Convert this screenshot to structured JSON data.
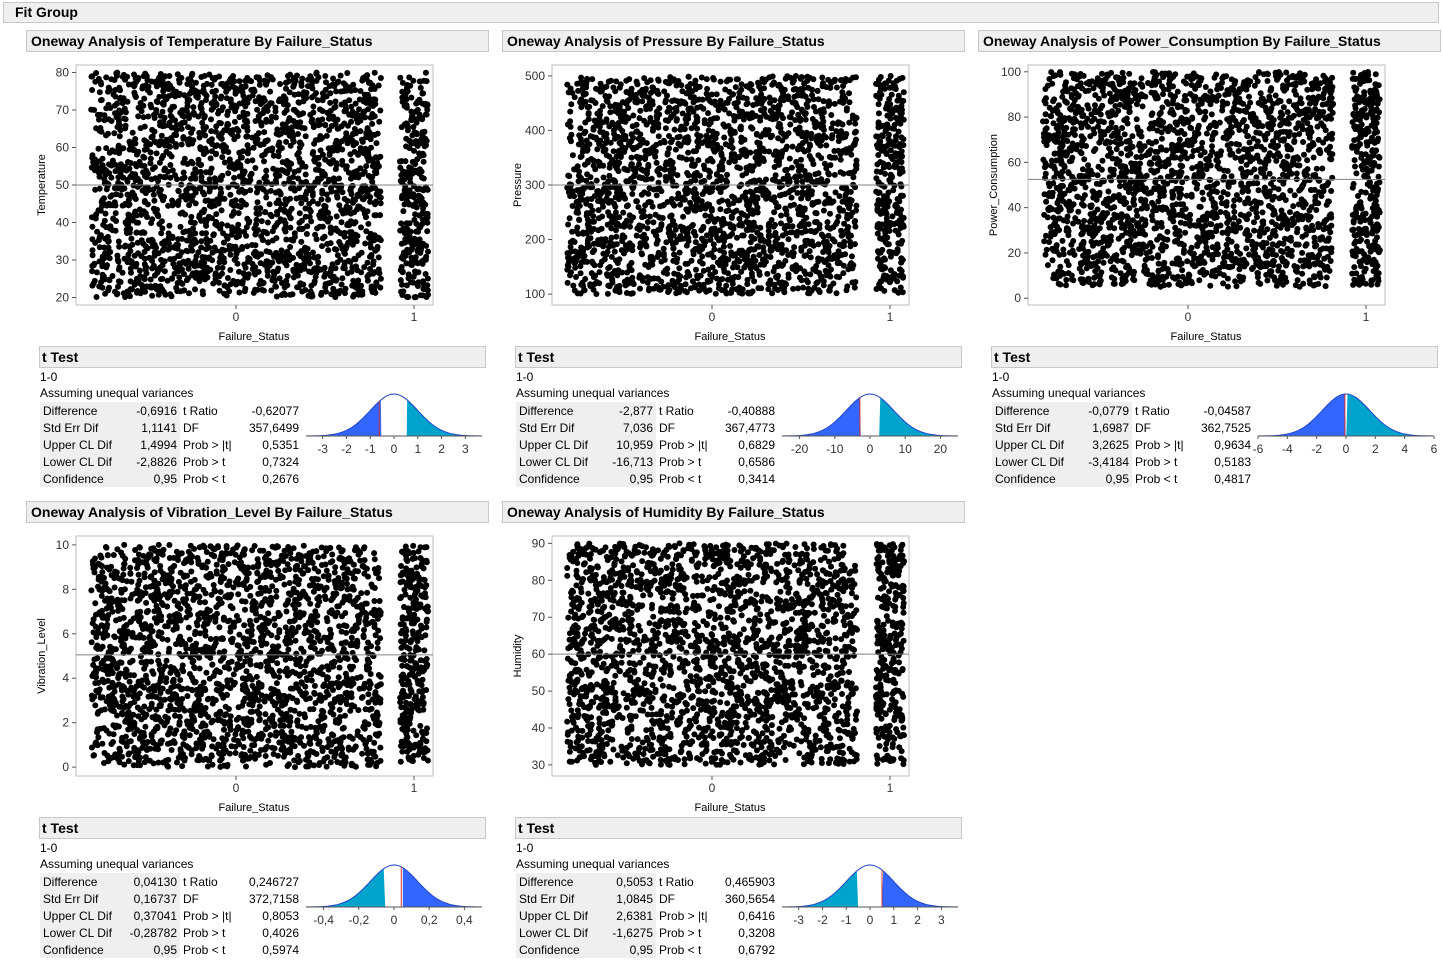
{
  "fit_group_title": "Fit Group",
  "colors": {
    "jitter_point": "#000000",
    "dist_left": "#3366ff",
    "dist_right": "#00a3cc",
    "mean_line": "#808080",
    "estimate_line": "#cc3333"
  },
  "panels": [
    {
      "title": "Oneway Analysis of Temperature By Failure_Status",
      "chart_data": {
        "type": "scatter",
        "ylabel": "Temperature",
        "xlabel": "Failure_Status",
        "ylim": [
          18,
          82
        ],
        "yticks": [
          20,
          30,
          40,
          50,
          60,
          70,
          80
        ],
        "categories": [
          "0",
          "1"
        ],
        "y_range_group0": [
          20,
          80
        ],
        "y_range_group1": [
          20,
          80
        ],
        "grand_mean": 50
      },
      "ttest": {
        "title": "t Test",
        "comparison": "1-0",
        "assumption": "Assuming unequal variances",
        "rows": [
          {
            "label": "Difference",
            "value": "-0,6916",
            "stat": "t Ratio",
            "stat_value": "-0,62077"
          },
          {
            "label": "Std Err Dif",
            "value": "1,1141",
            "stat": "DF",
            "stat_value": "357,6499"
          },
          {
            "label": "Upper CL Dif",
            "value": "1,4994",
            "stat": "Prob > |t|",
            "stat_value": "0,5351"
          },
          {
            "label": "Lower CL Dif",
            "value": "-2,8826",
            "stat": "Prob > t",
            "stat_value": "0,7324"
          },
          {
            "label": "Confidence",
            "value": "0,95",
            "stat": "Prob < t",
            "stat_value": "0,2676"
          }
        ],
        "dist": {
          "xticks": [
            "-3",
            "-2",
            "-1",
            "0",
            "1",
            "2",
            "3"
          ],
          "xmin": -3.7,
          "xmax": 3.7,
          "tratio": -0.62077,
          "ci_lower": -0.5351,
          "ci_upper": 0.5351
        }
      }
    },
    {
      "title": "Oneway Analysis of Pressure By Failure_Status",
      "chart_data": {
        "type": "scatter",
        "ylabel": "Pressure",
        "xlabel": "Failure_Status",
        "ylim": [
          80,
          520
        ],
        "yticks": [
          100,
          200,
          300,
          400,
          500
        ],
        "categories": [
          "0",
          "1"
        ],
        "y_range_group0": [
          100,
          500
        ],
        "y_range_group1": [
          100,
          500
        ],
        "grand_mean": 300
      },
      "ttest": {
        "title": "t Test",
        "comparison": "1-0",
        "assumption": "Assuming unequal variances",
        "rows": [
          {
            "label": "Difference",
            "value": "-2,877",
            "stat": "t Ratio",
            "stat_value": "-0,40888"
          },
          {
            "label": "Std Err Dif",
            "value": "7,036",
            "stat": "DF",
            "stat_value": "367,4773"
          },
          {
            "label": "Upper CL Dif",
            "value": "10,959",
            "stat": "Prob > |t|",
            "stat_value": "0,6829"
          },
          {
            "label": "Lower CL Dif",
            "value": "-16,713",
            "stat": "Prob > t",
            "stat_value": "0,6586"
          },
          {
            "label": "Confidence",
            "value": "0,95",
            "stat": "Prob < t",
            "stat_value": "0,3414"
          }
        ],
        "dist": {
          "xticks": [
            "-20",
            "-10",
            "0",
            "10",
            "20"
          ],
          "xmin": -25,
          "xmax": 25,
          "tratio": -2.877,
          "ci_lower": -2.6,
          "ci_upper": 2.6
        }
      }
    },
    {
      "title": "Oneway Analysis of Power_Consumption By Failure_Status",
      "chart_data": {
        "type": "scatter",
        "ylabel": "Power_Consumption",
        "xlabel": "Failure_Status",
        "ylim": [
          -3,
          103
        ],
        "yticks": [
          0,
          20,
          40,
          60,
          80,
          100
        ],
        "categories": [
          "0",
          "1"
        ],
        "y_range_group0": [
          5,
          100
        ],
        "y_range_group1": [
          5,
          100
        ],
        "grand_mean": 52.5
      },
      "ttest": {
        "title": "t Test",
        "comparison": "1-0",
        "assumption": "Assuming unequal variances",
        "rows": [
          {
            "label": "Difference",
            "value": "-0,0779",
            "stat": "t Ratio",
            "stat_value": "-0,04587"
          },
          {
            "label": "Std Err Dif",
            "value": "1,6987",
            "stat": "DF",
            "stat_value": "362,7525"
          },
          {
            "label": "Upper CL Dif",
            "value": "3,2625",
            "stat": "Prob > |t|",
            "stat_value": "0,9634"
          },
          {
            "label": "Lower CL Dif",
            "value": "-3,4184",
            "stat": "Prob > t",
            "stat_value": "0,5183"
          },
          {
            "label": "Confidence",
            "value": "0,95",
            "stat": "Prob < t",
            "stat_value": "0,4817"
          }
        ],
        "dist": {
          "xticks": [
            "-6",
            "-4",
            "-2",
            "0",
            "2",
            "4",
            "6"
          ],
          "xmin": -6,
          "xmax": 6,
          "tratio": -0.0779,
          "ci_lower": -0.02,
          "ci_upper": 0.02
        }
      }
    },
    {
      "title": "Oneway Analysis of Vibration_Level By Failure_Status",
      "chart_data": {
        "type": "scatter",
        "ylabel": "Vibration_Level",
        "xlabel": "Failure_Status",
        "ylim": [
          -0.4,
          10.4
        ],
        "yticks": [
          0,
          2,
          4,
          6,
          8,
          10
        ],
        "categories": [
          "0",
          "1"
        ],
        "y_range_group0": [
          0,
          10
        ],
        "y_range_group1": [
          0.2,
          10
        ],
        "grand_mean": 5.05
      },
      "ttest": {
        "title": "t Test",
        "comparison": "1-0",
        "assumption": "Assuming unequal variances",
        "rows": [
          {
            "label": "Difference",
            "value": "0,04130",
            "stat": "t Ratio",
            "stat_value": "0,246727"
          },
          {
            "label": "Std Err Dif",
            "value": "0,16737",
            "stat": "DF",
            "stat_value": "372,7158"
          },
          {
            "label": "Upper CL Dif",
            "value": "0,37041",
            "stat": "Prob > |t|",
            "stat_value": "0,8053"
          },
          {
            "label": "Lower CL Dif",
            "value": "-0,28782",
            "stat": "Prob > t",
            "stat_value": "0,4026"
          },
          {
            "label": "Confidence",
            "value": "0,95",
            "stat": "Prob < t",
            "stat_value": "0,5974"
          }
        ],
        "dist": {
          "xticks": [
            "-0,4",
            "-0,2",
            "0",
            "0,2",
            "0,4"
          ],
          "xmin": -0.5,
          "xmax": 0.5,
          "tratio": 0.0413,
          "ci_lower": -0.05,
          "ci_upper": 0.05
        }
      }
    },
    {
      "title": "Oneway Analysis of Humidity By Failure_Status",
      "chart_data": {
        "type": "scatter",
        "ylabel": "Humidity",
        "xlabel": "Failure_Status",
        "ylim": [
          27,
          92
        ],
        "yticks": [
          30,
          40,
          50,
          60,
          70,
          80,
          90
        ],
        "categories": [
          "0",
          "1"
        ],
        "y_range_group0": [
          30,
          90
        ],
        "y_range_group1": [
          30,
          90
        ],
        "grand_mean": 60
      },
      "ttest": {
        "title": "t Test",
        "comparison": "1-0",
        "assumption": "Assuming unequal variances",
        "rows": [
          {
            "label": "Difference",
            "value": "0,5053",
            "stat": "t Ratio",
            "stat_value": "0,465903"
          },
          {
            "label": "Std Err Dif",
            "value": "1,0845",
            "stat": "DF",
            "stat_value": "360,5654"
          },
          {
            "label": "Upper CL Dif",
            "value": "2,6381",
            "stat": "Prob > |t|",
            "stat_value": "0,6416"
          },
          {
            "label": "Lower CL Dif",
            "value": "-1,6275",
            "stat": "Prob > t",
            "stat_value": "0,3208"
          },
          {
            "label": "Confidence",
            "value": "0,95",
            "stat": "Prob < t",
            "stat_value": "0,6792"
          }
        ],
        "dist": {
          "xticks": [
            "-3",
            "-2",
            "-1",
            "0",
            "1",
            "2",
            "3"
          ],
          "xmin": -3.7,
          "xmax": 3.7,
          "tratio": 0.5053,
          "ci_lower": -0.5,
          "ci_upper": 0.5
        }
      }
    }
  ]
}
